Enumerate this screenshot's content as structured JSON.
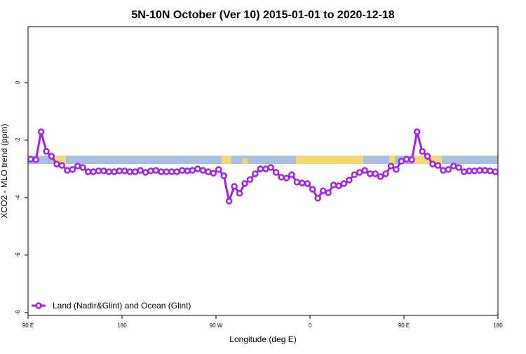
{
  "chart_data": {
    "type": "line",
    "title": "5N-10N October (Ver 10)   2015-01-01 to 2020-12-18",
    "xlabel": "Longitude (deg E)",
    "ylabel": "XCO2 - MLO trend (ppm)",
    "xlim": [
      90,
      540
    ],
    "ylim": [
      -8.1,
      1.95
    ],
    "xticks": [
      {
        "value": 90,
        "label": "90 E"
      },
      {
        "value": 180,
        "label": "180"
      },
      {
        "value": 270,
        "label": "90 W"
      },
      {
        "value": 360,
        "label": "0"
      },
      {
        "value": 450,
        "label": "90 E"
      },
      {
        "value": 540,
        "label": "180"
      }
    ],
    "yticks": [
      0,
      -2,
      -4,
      -6,
      -8
    ],
    "legend": "bottom-left",
    "x": [
      92.5,
      97.5,
      102.5,
      107.5,
      112.5,
      117.5,
      122.5,
      127.5,
      132.5,
      137.5,
      142.5,
      147.5,
      152.5,
      157.5,
      162.5,
      167.5,
      172.5,
      177.5,
      182.5,
      187.5,
      192.5,
      197.5,
      202.5,
      207.5,
      212.5,
      217.5,
      222.5,
      227.5,
      232.5,
      237.5,
      242.5,
      247.5,
      252.5,
      257.5,
      262.5,
      267.5,
      272.5,
      277.5,
      282.5,
      287.5,
      292.5,
      297.5,
      302.5,
      307.5,
      312.5,
      317.5,
      322.5,
      327.5,
      332.5,
      337.5,
      342.5,
      347.5,
      352.5,
      357.5,
      362.5,
      367.5,
      372.5,
      377.5,
      382.5,
      387.5,
      392.5,
      397.5,
      402.5,
      407.5,
      412.5,
      417.5,
      422.5,
      427.5,
      432.5,
      437.5,
      442.5,
      447.5,
      452.5,
      457.5,
      462.5,
      467.5,
      472.5,
      477.5,
      482.5,
      487.5,
      492.5,
      497.5,
      502.5,
      507.5,
      512.5,
      517.5,
      522.5,
      527.5,
      532.5,
      537.5
    ],
    "series": [
      {
        "name": "Land (Nadir&Glint) and Ocean (Glint)",
        "color": "#a020f0",
        "values": [
          -2.66,
          -2.68,
          -1.71,
          -2.39,
          -2.56,
          -2.83,
          -2.88,
          -3.05,
          -3.02,
          -2.9,
          -2.95,
          -3.1,
          -3.1,
          -3.07,
          -3.07,
          -3.1,
          -3.1,
          -3.07,
          -3.07,
          -3.1,
          -3.1,
          -3.05,
          -3.12,
          -3.07,
          -3.05,
          -3.1,
          -3.1,
          -3.1,
          -3.1,
          -3.05,
          -3.07,
          -3.05,
          -3.0,
          -3.05,
          -3.1,
          -3.15,
          -3.02,
          -3.24,
          -4.12,
          -3.61,
          -3.85,
          -3.51,
          -3.37,
          -3.17,
          -3.0,
          -3.0,
          -2.95,
          -3.12,
          -3.29,
          -3.32,
          -3.2,
          -3.46,
          -3.49,
          -3.51,
          -3.71,
          -4.02,
          -3.76,
          -3.83,
          -3.56,
          -3.59,
          -3.51,
          -3.39,
          -3.2,
          -3.12,
          -3.05,
          -3.17,
          -3.17,
          -3.27,
          -3.17,
          -2.9,
          -3.02,
          -2.73,
          -2.66,
          -2.68,
          -1.71,
          -2.39,
          -2.56,
          -2.83,
          -2.88,
          -3.05,
          -3.02,
          -2.9,
          -2.95,
          -3.1,
          -3.07,
          -3.07,
          -3.05,
          -3.05,
          -3.07,
          -3.1
        ]
      }
    ]
  }
}
